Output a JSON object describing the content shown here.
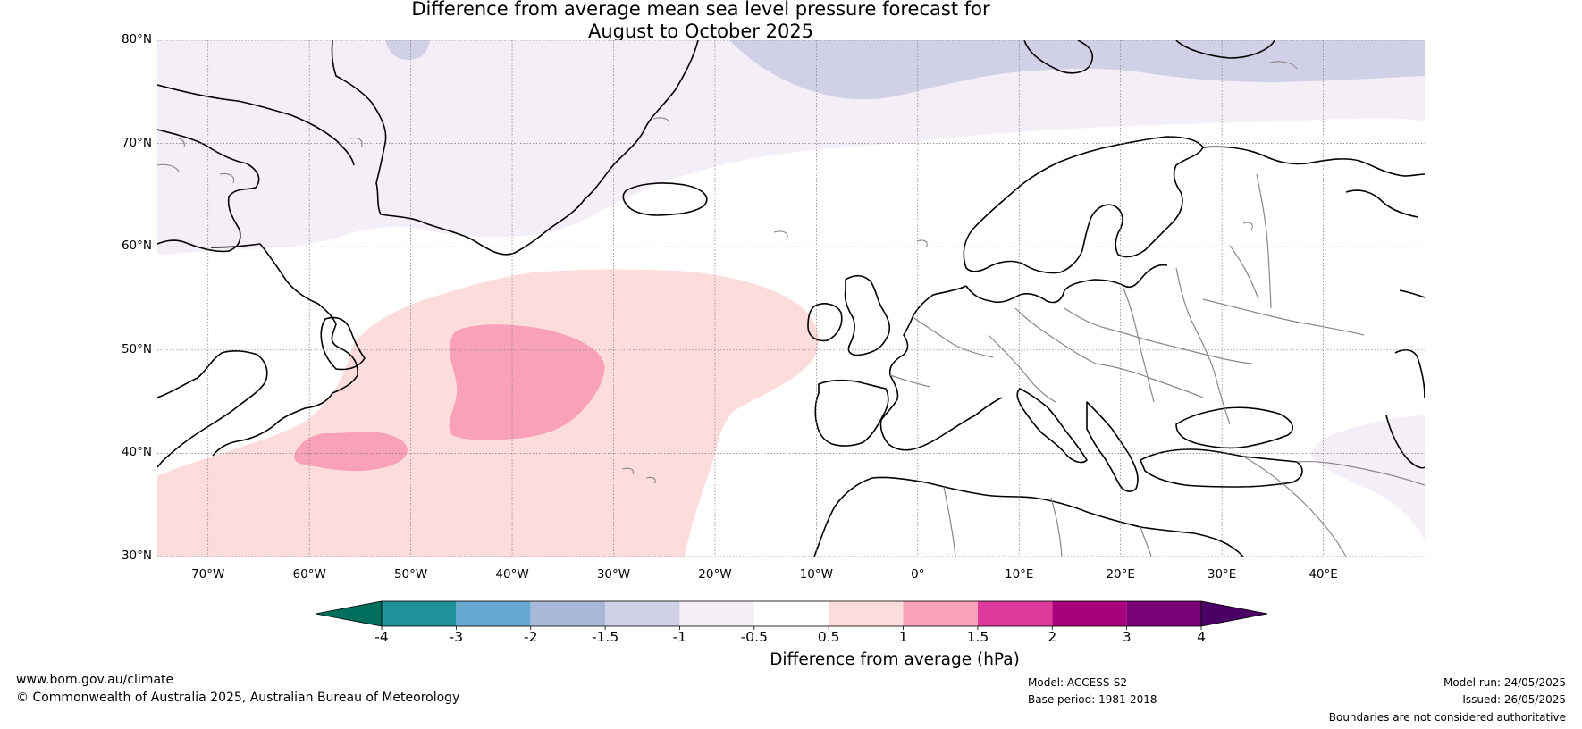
{
  "title": {
    "line1": "Difference from average mean sea level pressure forecast for",
    "line2": "August to October 2025"
  },
  "map": {
    "lon_range": [
      -75,
      50
    ],
    "lat_range": [
      30,
      80
    ],
    "lat_labels": [
      "80°N",
      "70°N",
      "60°N",
      "50°N",
      "40°N",
      "30°N"
    ],
    "lon_labels": [
      "70°W",
      "60°W",
      "50°W",
      "40°W",
      "30°W",
      "20°W",
      "10°W",
      "0°",
      "10°E",
      "20°E",
      "30°E",
      "40°E"
    ],
    "gridlines": true,
    "regions": [
      {
        "name": "North Atlantic / Western Europe",
        "category": "-0.5 to 0.5"
      },
      {
        "name": "Central North Atlantic",
        "category": "0.5 to 1"
      },
      {
        "name": "Mid North Atlantic (40°W)",
        "category": "1 to 1.5"
      },
      {
        "name": "Off Eastern US coast (55°W, 40°N)",
        "category": "1 to 1.5"
      },
      {
        "name": "Greenland",
        "category": "-1 to -0.5"
      },
      {
        "name": "Arctic Ocean north of Greenland / Svalbard",
        "category": "-1.5 to -1"
      },
      {
        "name": "Eastern Turkey / Caucasus",
        "category": "-1 to -0.5"
      }
    ]
  },
  "colorbar": {
    "ticks": [
      "-4",
      "-3",
      "-2",
      "-1.5",
      "-1",
      "-0.5",
      "0.5",
      "1",
      "1.5",
      "2",
      "3",
      "4"
    ],
    "colors": [
      "#006e5d",
      "#1e9199",
      "#66a8d0",
      "#a9b8d8",
      "#d0d1e6",
      "#f4eef7",
      "#ffffff",
      "#fddcdc",
      "#f8a1b8",
      "#dd3a9b",
      "#a8007c",
      "#7a0178",
      "#4b0066"
    ],
    "label": "Difference from average (hPa)"
  },
  "footer": {
    "left_line1": "www.bom.gov.au/climate",
    "left_line2": "© Commonwealth of Australia 2025, Australian Bureau of Meteorology",
    "model": "Model: ACCESS-S2",
    "base_period": "Base period: 1981-2018",
    "model_run": "Model run: 24/05/2025",
    "issued": "Issued: 26/05/2025",
    "disclaimer": "Boundaries are not considered authoritative"
  }
}
